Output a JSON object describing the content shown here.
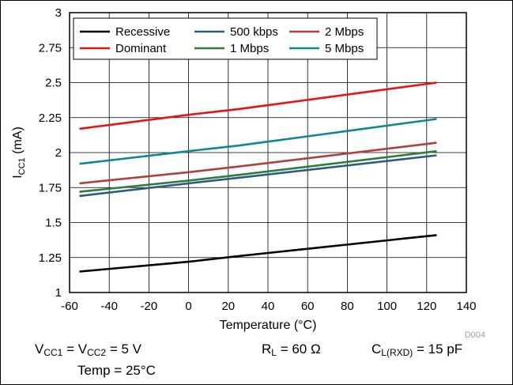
{
  "chart_data": {
    "type": "line",
    "x_ticks": [
      -60,
      -40,
      -20,
      0,
      20,
      40,
      60,
      80,
      100,
      120,
      140
    ],
    "y_ticks": [
      "1",
      "1.25",
      "1.5",
      "1.75",
      "2",
      "2.25",
      "2.5",
      "2.75",
      "3"
    ],
    "xlim": [
      -60,
      140
    ],
    "ylim": [
      1,
      3
    ],
    "grid": true,
    "legend_position": "top-left",
    "xlabel": "Temperature (°C)",
    "ylabel": {
      "main": "I",
      "sub": "CC1",
      "unit": " (mA)"
    },
    "watermark": "D004",
    "series": [
      {
        "name": "Recessive",
        "color": "#000000",
        "x": [
          -55,
          0,
          25,
          125
        ],
        "y": [
          1.15,
          1.22,
          1.26,
          1.41
        ]
      },
      {
        "name": "Dominant",
        "color": "#e8150d",
        "x": [
          -55,
          0,
          25,
          125
        ],
        "y": [
          2.17,
          2.27,
          2.31,
          2.5
        ]
      },
      {
        "name": "500 kbps",
        "color": "#2f5a82",
        "x": [
          -55,
          0,
          25,
          125
        ],
        "y": [
          1.69,
          1.78,
          1.82,
          1.98
        ]
      },
      {
        "name": "1 Mbps",
        "color": "#2e7d3c",
        "x": [
          -55,
          0,
          25,
          125
        ],
        "y": [
          1.72,
          1.8,
          1.84,
          2.01
        ]
      },
      {
        "name": "2 Mbps",
        "color": "#b04040",
        "x": [
          -55,
          0,
          25,
          125
        ],
        "y": [
          1.78,
          1.86,
          1.9,
          2.07
        ]
      },
      {
        "name": "5 Mbps",
        "color": "#10898e",
        "x": [
          -55,
          0,
          25,
          125
        ],
        "y": [
          1.92,
          2.01,
          2.05,
          2.24
        ]
      }
    ]
  },
  "conditions": {
    "vcc_a": "V",
    "vcc_a_sub": "CC1",
    "vcc_mid": " = V",
    "vcc_b_sub": "CC2",
    "vcc_end": " = 5 V",
    "rl": "R",
    "rl_sub": "L",
    "rl_end": " = 60 Ω",
    "cl": "C",
    "cl_sub": "L(RXD)",
    "cl_end": " = 15 pF",
    "temp": "Temp = 25°C"
  }
}
